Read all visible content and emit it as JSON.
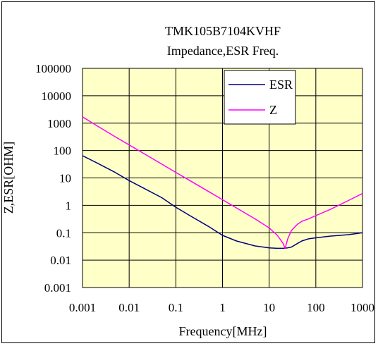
{
  "chart_data": {
    "type": "line",
    "title": "TMK105B7104KVHF",
    "subtitle": "Impedance,ESR Freq.",
    "xlabel": "Frequency[MHz]",
    "ylabel": "Z,ESR[OHM]",
    "x_scale": "log",
    "y_scale": "log",
    "xlim": [
      0.001,
      1000
    ],
    "ylim": [
      0.001,
      100000
    ],
    "x_ticks": [
      "0.001",
      "0.01",
      "0.1",
      "1",
      "10",
      "100",
      "1000"
    ],
    "y_ticks": [
      "0.001",
      "0.01",
      "0.1",
      "1",
      "10",
      "100",
      "1000",
      "10000",
      "100000"
    ],
    "grid": true,
    "legend_position": "top-right",
    "background_color": "#ffffc8",
    "series": [
      {
        "name": "ESR",
        "color": "#000080",
        "x": [
          0.001,
          0.002,
          0.005,
          0.01,
          0.02,
          0.05,
          0.1,
          0.2,
          0.5,
          1,
          2,
          5,
          10,
          15,
          20,
          25,
          30,
          40,
          50,
          70,
          100,
          200,
          500,
          1000
        ],
        "y": [
          65,
          36,
          16,
          8,
          4.3,
          1.9,
          0.85,
          0.42,
          0.17,
          0.08,
          0.05,
          0.033,
          0.028,
          0.027,
          0.027,
          0.028,
          0.03,
          0.04,
          0.05,
          0.06,
          0.065,
          0.075,
          0.085,
          0.1
        ]
      },
      {
        "name": "Z",
        "color": "#ff00ff",
        "x": [
          0.001,
          0.002,
          0.005,
          0.01,
          0.02,
          0.05,
          0.1,
          0.2,
          0.5,
          1,
          2,
          5,
          10,
          15,
          20,
          22,
          25,
          30,
          40,
          50,
          70,
          100,
          200,
          500,
          1000
        ],
        "y": [
          1700,
          820,
          320,
          160,
          80,
          32,
          16,
          8,
          3.2,
          1.6,
          0.8,
          0.32,
          0.15,
          0.08,
          0.04,
          0.027,
          0.06,
          0.12,
          0.2,
          0.26,
          0.32,
          0.42,
          0.7,
          1.5,
          2.7
        ]
      }
    ]
  }
}
